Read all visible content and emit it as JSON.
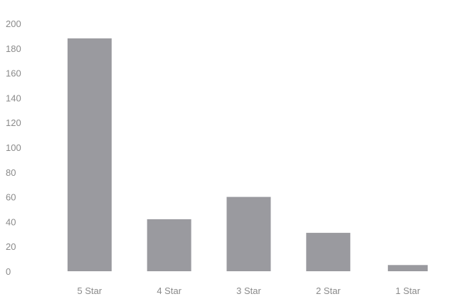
{
  "chart_data": {
    "type": "bar",
    "categories": [
      "5 Star",
      "4 Star",
      "3 Star",
      "2 Star",
      "1 Star"
    ],
    "values": [
      188,
      42,
      60,
      31,
      5
    ],
    "ylim": [
      0,
      200
    ],
    "yticks": [
      0,
      20,
      40,
      60,
      80,
      100,
      120,
      140,
      160,
      180,
      200
    ],
    "grid": false,
    "legend": "none",
    "bar_color": "#9a9a9f",
    "text_color": "#8a8a8a"
  }
}
